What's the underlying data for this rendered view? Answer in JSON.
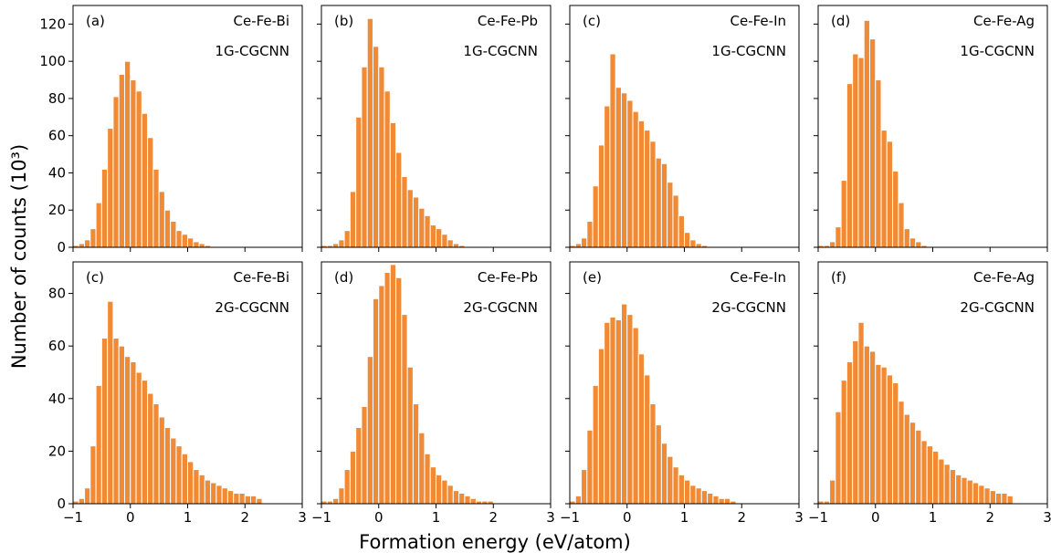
{
  "figure": {
    "xlabel": "Formation energy (eV/atom)",
    "ylabel": "Number of counts (10³)"
  },
  "colors": {
    "bar": "#f08a35",
    "bar_edge": "#ffffff",
    "axes": "#000000"
  },
  "chart_data": [
    {
      "type": "bar",
      "tag": "(a)",
      "system": "Ce-Fe-Bi",
      "model": "1G-CGCNN",
      "xlim": [
        -1,
        3
      ],
      "ylim": [
        0,
        130
      ],
      "bin_start": -0.95,
      "bin_width": 0.1,
      "xticks": [
        "−1",
        "0",
        "1",
        "2",
        "3"
      ],
      "yticks": [
        "0",
        "20",
        "40",
        "60",
        "80",
        "100",
        "120"
      ],
      "values": [
        1,
        2,
        4,
        10,
        24,
        42,
        64,
        81,
        93,
        100,
        90,
        84,
        72,
        59,
        42,
        30,
        20,
        14,
        9,
        7,
        5,
        3,
        2,
        1
      ]
    },
    {
      "type": "bar",
      "tag": "(b)",
      "system": "Ce-Fe-Pb",
      "model": "1G-CGCNN",
      "xlim": [
        -1,
        3
      ],
      "ylim": [
        0,
        130
      ],
      "bin_start": -0.95,
      "bin_width": 0.1,
      "xticks": [
        "−1",
        "0",
        "1",
        "2",
        "3"
      ],
      "yticks": [
        "0",
        "20",
        "40",
        "60",
        "80",
        "100",
        "120"
      ],
      "values": [
        1,
        1,
        2,
        4,
        9,
        30,
        70,
        97,
        123,
        108,
        97,
        84,
        67,
        51,
        38,
        31,
        27,
        21,
        17,
        12,
        10,
        7,
        4,
        2,
        1
      ]
    },
    {
      "type": "bar",
      "tag": "(c)",
      "system": "Ce-Fe-In",
      "model": "1G-CGCNN",
      "xlim": [
        -1,
        3
      ],
      "ylim": [
        0,
        130
      ],
      "bin_start": -0.95,
      "bin_width": 0.1,
      "xticks": [
        "−1",
        "0",
        "1",
        "2",
        "3"
      ],
      "yticks": [
        "0",
        "20",
        "40",
        "60",
        "80",
        "100",
        "120"
      ],
      "values": [
        1,
        2,
        5,
        14,
        33,
        55,
        76,
        104,
        86,
        83,
        79,
        73,
        68,
        63,
        57,
        48,
        45,
        35,
        28,
        17,
        8,
        4,
        2,
        1
      ]
    },
    {
      "type": "bar",
      "tag": "(d)",
      "system": "Ce-Fe-Ag",
      "model": "1G-CGCNN",
      "xlim": [
        -1,
        3
      ],
      "ylim": [
        0,
        130
      ],
      "bin_start": -0.95,
      "bin_width": 0.1,
      "xticks": [
        "−1",
        "0",
        "1",
        "2",
        "3"
      ],
      "yticks": [
        "0",
        "20",
        "40",
        "60",
        "80",
        "100",
        "120"
      ],
      "values": [
        1,
        1,
        3,
        11,
        36,
        88,
        104,
        102,
        122,
        112,
        90,
        63,
        57,
        41,
        24,
        10,
        5,
        3,
        1
      ]
    },
    {
      "type": "bar",
      "tag": "(c)",
      "system": "Ce-Fe-Bi",
      "model": "2G-CGCNN",
      "xlim": [
        -1,
        3
      ],
      "ylim": [
        0,
        92
      ],
      "bin_start": -0.95,
      "bin_width": 0.1,
      "xticks": [
        "−1",
        "0",
        "1",
        "2",
        "3"
      ],
      "yticks": [
        "0",
        "20",
        "40",
        "60",
        "80"
      ],
      "values": [
        1,
        2,
        6,
        22,
        45,
        63,
        77,
        63,
        60,
        56,
        54,
        50,
        47,
        42,
        38,
        33,
        29,
        25,
        22,
        19,
        16,
        13,
        11,
        9,
        8,
        7,
        6,
        5,
        4,
        4,
        3,
        3,
        2
      ]
    },
    {
      "type": "bar",
      "tag": "(d)",
      "system": "Ce-Fe-Pb",
      "model": "2G-CGCNN",
      "xlim": [
        -1,
        3
      ],
      "ylim": [
        0,
        92
      ],
      "bin_start": -0.95,
      "bin_width": 0.1,
      "xticks": [
        "−1",
        "0",
        "1",
        "2",
        "3"
      ],
      "yticks": [
        "0",
        "20",
        "40",
        "60",
        "80"
      ],
      "values": [
        1,
        1,
        2,
        6,
        13,
        20,
        29,
        37,
        56,
        78,
        83,
        88,
        91,
        86,
        72,
        52,
        38,
        27,
        19,
        14,
        11,
        9,
        7,
        5,
        4,
        3,
        2,
        1,
        1,
        1
      ]
    },
    {
      "type": "bar",
      "tag": "(e)",
      "system": "Ce-Fe-In",
      "model": "2G-CGCNN",
      "xlim": [
        -1,
        3
      ],
      "ylim": [
        0,
        92
      ],
      "bin_start": -0.95,
      "bin_width": 0.1,
      "xticks": [
        "−1",
        "0",
        "1",
        "2",
        "3"
      ],
      "yticks": [
        "0",
        "20",
        "40",
        "60",
        "80"
      ],
      "values": [
        1,
        3,
        13,
        28,
        45,
        59,
        69,
        71,
        70,
        76,
        72,
        67,
        57,
        49,
        38,
        30,
        23,
        18,
        14,
        11,
        9,
        7,
        6,
        5,
        4,
        3,
        2,
        2,
        1
      ]
    },
    {
      "type": "bar",
      "tag": "(f)",
      "system": "Ce-Fe-Ag",
      "model": "2G-CGCNN",
      "xlim": [
        -1,
        3
      ],
      "ylim": [
        0,
        92
      ],
      "bin_start": -0.95,
      "bin_width": 0.1,
      "xticks": [
        "−1",
        "0",
        "1",
        "2",
        "3"
      ],
      "yticks": [
        "0",
        "20",
        "40",
        "60",
        "80"
      ],
      "values": [
        1,
        1,
        9,
        35,
        47,
        54,
        62,
        69,
        60,
        58,
        53,
        52,
        49,
        46,
        39,
        34,
        31,
        28,
        24,
        22,
        20,
        17,
        15,
        13,
        11,
        10,
        9,
        8,
        7,
        6,
        5,
        4,
        4,
        3
      ]
    }
  ]
}
